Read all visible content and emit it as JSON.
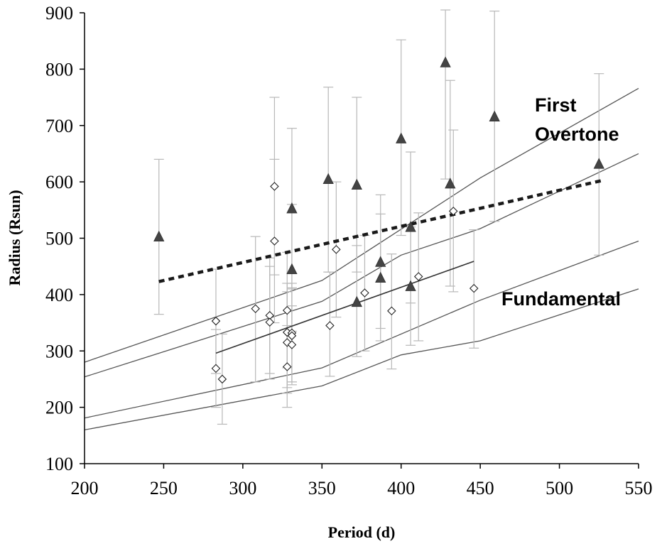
{
  "chart_data": {
    "type": "scatter",
    "title": "",
    "xlabel": "Period (d)",
    "ylabel": "Radius (Rsun)",
    "xlim": [
      200,
      550
    ],
    "ylim": [
      100,
      900
    ],
    "xticks": [
      200,
      250,
      300,
      350,
      400,
      450,
      500,
      550
    ],
    "yticks": [
      100,
      200,
      300,
      400,
      500,
      600,
      700,
      800,
      900
    ],
    "grid": false,
    "legend": "none",
    "annotations": [
      {
        "text": "First",
        "near": "upper-right"
      },
      {
        "text": "Overtone",
        "near": "upper-right"
      },
      {
        "text": "Fundamental",
        "near": "right"
      }
    ],
    "series": [
      {
        "marker": "triangle",
        "points": [
          {
            "x": 247,
            "y": 503,
            "ylow": 365,
            "yhigh": 640
          },
          {
            "x": 331,
            "y": 553,
            "ylow": 412,
            "yhigh": 695
          },
          {
            "x": 331,
            "y": 445,
            "ylow": 335,
            "yhigh": 560
          },
          {
            "x": 354,
            "y": 605,
            "ylow": 440,
            "yhigh": 768
          },
          {
            "x": 372,
            "y": 595,
            "ylow": 440,
            "yhigh": 750
          },
          {
            "x": 372,
            "y": 387,
            "ylow": 290,
            "yhigh": 487
          },
          {
            "x": 387,
            "y": 458,
            "ylow": 340,
            "yhigh": 577
          },
          {
            "x": 387,
            "y": 430,
            "ylow": 318,
            "yhigh": 543
          },
          {
            "x": 400,
            "y": 677,
            "ylow": 505,
            "yhigh": 852
          },
          {
            "x": 406,
            "y": 520,
            "ylow": 385,
            "yhigh": 653
          },
          {
            "x": 406,
            "y": 415,
            "ylow": 310,
            "yhigh": 520
          },
          {
            "x": 428,
            "y": 812,
            "ylow": 605,
            "yhigh": 905
          },
          {
            "x": 431,
            "y": 597,
            "ylow": 415,
            "yhigh": 780
          },
          {
            "x": 459,
            "y": 716,
            "ylow": 530,
            "yhigh": 903
          },
          {
            "x": 525,
            "y": 632,
            "ylow": 470,
            "yhigh": 792
          }
        ]
      },
      {
        "marker": "diamond",
        "points": [
          {
            "x": 283,
            "y": 353,
            "ylow": 260,
            "yhigh": 445
          },
          {
            "x": 283,
            "y": 269,
            "ylow": 200,
            "yhigh": 338
          },
          {
            "x": 287,
            "y": 250,
            "ylow": 170,
            "yhigh": 330
          },
          {
            "x": 308,
            "y": 375,
            "ylow": 245,
            "yhigh": 503
          },
          {
            "x": 317,
            "y": 363,
            "ylow": 260,
            "yhigh": 465
          },
          {
            "x": 317,
            "y": 351,
            "ylow": 250,
            "yhigh": 450
          },
          {
            "x": 320,
            "y": 592,
            "ylow": 435,
            "yhigh": 750
          },
          {
            "x": 320,
            "y": 495,
            "ylow": 350,
            "yhigh": 640
          },
          {
            "x": 328,
            "y": 372,
            "ylow": 270,
            "yhigh": 475
          },
          {
            "x": 328,
            "y": 333,
            "ylow": 235,
            "yhigh": 420
          },
          {
            "x": 328,
            "y": 315,
            "ylow": 225,
            "yhigh": 405
          },
          {
            "x": 328,
            "y": 272,
            "ylow": 200,
            "yhigh": 345
          },
          {
            "x": 331,
            "y": 332,
            "ylow": 240,
            "yhigh": 420
          },
          {
            "x": 331,
            "y": 327,
            "ylow": 245,
            "yhigh": 410
          },
          {
            "x": 331,
            "y": 311,
            "ylow": 245,
            "yhigh": 380
          },
          {
            "x": 355,
            "y": 345,
            "ylow": 255,
            "yhigh": 440
          },
          {
            "x": 359,
            "y": 480,
            "ylow": 360,
            "yhigh": 600
          },
          {
            "x": 377,
            "y": 403,
            "ylow": 300,
            "yhigh": 505
          },
          {
            "x": 394,
            "y": 371,
            "ylow": 268,
            "yhigh": 472
          },
          {
            "x": 411,
            "y": 432,
            "ylow": 318,
            "yhigh": 545
          },
          {
            "x": 433,
            "y": 548,
            "ylow": 405,
            "yhigh": 692
          },
          {
            "x": 446,
            "y": 411,
            "ylow": 305,
            "yhigh": 515
          }
        ]
      }
    ],
    "model_lines": [
      {
        "style": "thin",
        "points": [
          [
            200,
            280
          ],
          [
            350,
            425
          ],
          [
            450,
            607
          ],
          [
            550,
            766
          ]
        ]
      },
      {
        "style": "thin",
        "points": [
          [
            200,
            254
          ],
          [
            350,
            388
          ],
          [
            400,
            470
          ],
          [
            450,
            517
          ],
          [
            550,
            650
          ]
        ]
      },
      {
        "style": "thin",
        "points": [
          [
            200,
            181
          ],
          [
            350,
            270
          ],
          [
            450,
            390
          ],
          [
            550,
            495
          ]
        ]
      },
      {
        "style": "thin",
        "points": [
          [
            200,
            160
          ],
          [
            350,
            238
          ],
          [
            400,
            293
          ],
          [
            450,
            318
          ],
          [
            550,
            410
          ]
        ]
      },
      {
        "style": "solid-fit",
        "points": [
          [
            283,
            296
          ],
          [
            446,
            459
          ]
        ]
      },
      {
        "style": "dashed-fit",
        "points": [
          [
            247,
            423
          ],
          [
            528,
            603
          ]
        ]
      }
    ]
  }
}
